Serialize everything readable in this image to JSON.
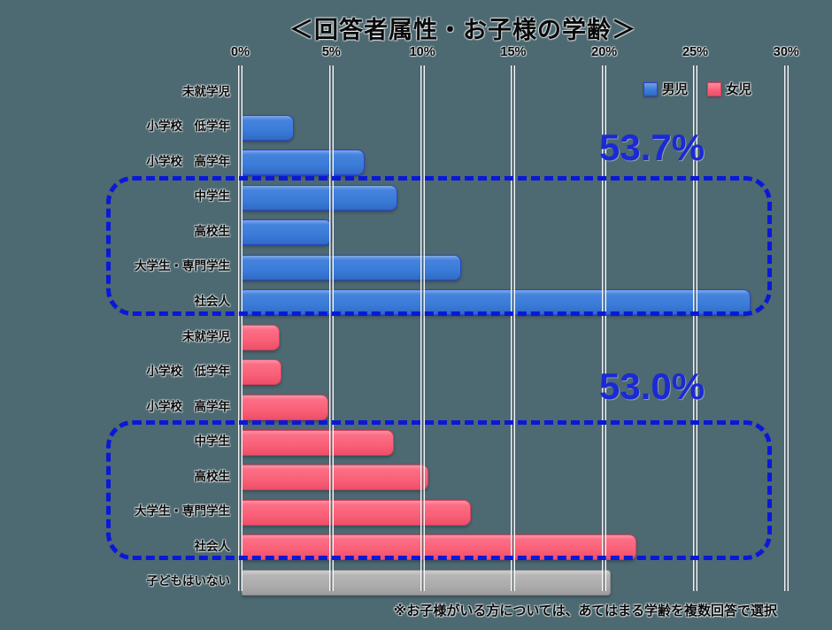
{
  "page": {
    "background_color": "#4D6972"
  },
  "chart_data": {
    "type": "bar",
    "orientation": "horizontal",
    "title": "＜回答者属性・お子様の学齢＞",
    "x_axis": {
      "min": 0,
      "max": 30,
      "unit": "%",
      "ticks": [
        "0%",
        "5%",
        "10%",
        "15%",
        "20%",
        "25%",
        "30%"
      ],
      "grid": true,
      "position": "top"
    },
    "categories": [
      "未就学児",
      "小学校　低学年",
      "小学校　高学年",
      "中学生",
      "高校生",
      "大学生・専門学生",
      "社会人"
    ],
    "series": [
      {
        "name": "男児",
        "color": "#3B7CD9",
        "values": [
          0,
          2.9,
          6.8,
          8.6,
          5.0,
          12.1,
          28.0
        ]
      },
      {
        "name": "女児",
        "color": "#FB6078",
        "values": [
          2.1,
          2.2,
          4.8,
          8.4,
          10.3,
          12.6,
          21.7
        ]
      }
    ],
    "extra_bar": {
      "label": "子どもはいない",
      "value": 20.3,
      "color": "#ACACAC"
    },
    "legend": {
      "position": "top-right",
      "items": [
        {
          "label": "男児",
          "color": "#3B7CD9"
        },
        {
          "label": "女児",
          "color": "#FB6078"
        }
      ]
    },
    "annotations": [
      {
        "text": "53.7%",
        "meaning": "男児 中学生〜社会人 合計",
        "color": "#1B2AD4"
      },
      {
        "text": "53.0%",
        "meaning": "女児 中学生〜社会人 合計",
        "color": "#1B2AD4"
      }
    ],
    "highlight_boxes": [
      {
        "series": "男児",
        "categories": [
          "中学生",
          "高校生",
          "大学生・専門学生",
          "社会人"
        ],
        "border_color": "#0A18D8",
        "style": "dashed"
      },
      {
        "series": "女児",
        "categories": [
          "中学生",
          "高校生",
          "大学生・専門学生",
          "社会人"
        ],
        "border_color": "#0A18D8",
        "style": "dashed"
      }
    ],
    "footnote": "※お子様がいる方については、あてはまる学齢を複数回答で選択"
  }
}
